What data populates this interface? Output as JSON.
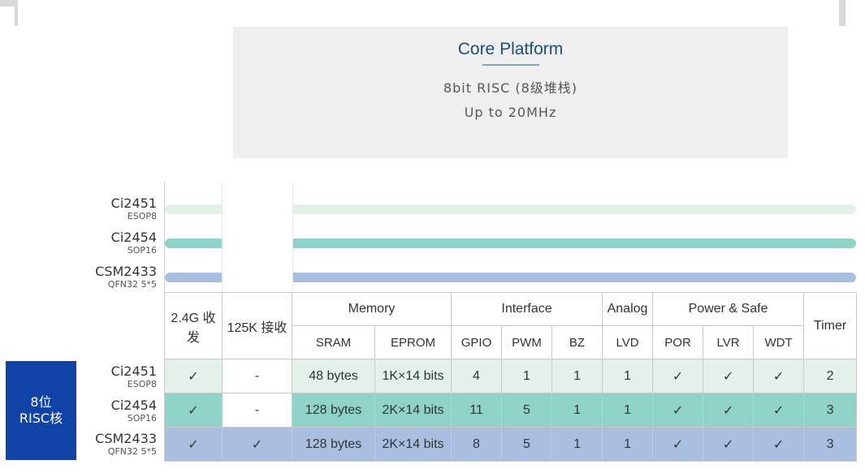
{
  "core": {
    "title": "Core Platform",
    "line1": "8bit RISC (8级堆栈)",
    "line2": "Up to 20MHz"
  },
  "chips": [
    {
      "name": "Ci2451",
      "package": "ESOP8"
    },
    {
      "name": "Ci2454",
      "package": "SOP16"
    },
    {
      "name": "CSM2433",
      "package": "QFN32 5*5"
    }
  ],
  "risc_label": {
    "line1": "8位",
    "line2": "RISC核"
  },
  "table": {
    "groups": {
      "g24": "2.4G 收发",
      "g125": "125K 接收",
      "memory": "Memory",
      "interface": "Interface",
      "analog": "Analog",
      "power": "Power & Safe",
      "timer": "Timer"
    },
    "subs": {
      "sram": "SRAM",
      "eprom": "EPROM",
      "gpio": "GPIO",
      "pwm": "PWM",
      "bz": "BZ",
      "lvd": "LVD",
      "por": "POR",
      "lvr": "LVR",
      "wdt": "WDT"
    },
    "rows": [
      {
        "g24": "✓",
        "g125": "-",
        "sram": "48 bytes",
        "eprom": "1K×14 bits",
        "gpio": "4",
        "pwm": "1",
        "bz": "1",
        "lvd": "1",
        "por": "✓",
        "lvr": "✓",
        "wdt": "✓",
        "timer": "2"
      },
      {
        "g24": "✓",
        "g125": "-",
        "sram": "128 bytes",
        "eprom": "2K×14 bits",
        "gpio": "11",
        "pwm": "5",
        "bz": "1",
        "lvd": "1",
        "por": "✓",
        "lvr": "✓",
        "wdt": "✓",
        "timer": "3"
      },
      {
        "g24": "✓",
        "g125": "✓",
        "sram": "128 bytes",
        "eprom": "2K×14 bits",
        "gpio": "8",
        "pwm": "5",
        "bz": "1",
        "lvd": "1",
        "por": "✓",
        "lvr": "✓",
        "wdt": "✓",
        "timer": "3"
      }
    ]
  },
  "colors": {
    "row1": "#e4f1e8",
    "row2": "#8fd2c7",
    "row3": "#a9bfe0",
    "risc_box": "#1142a6",
    "title": "#1f4e7a"
  }
}
